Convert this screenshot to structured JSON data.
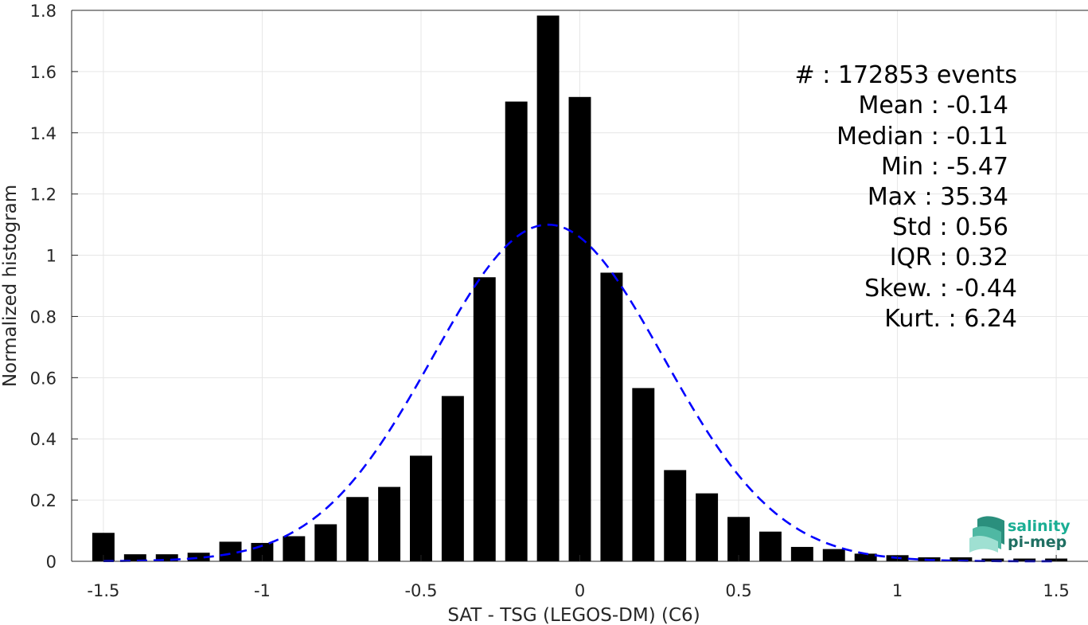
{
  "chart_data": {
    "type": "bar",
    "xlabel": "SAT - TSG (LEGOS-DM) (C6)",
    "ylabel": "Normalized histogram",
    "xlim": [
      -1.6,
      1.6
    ],
    "ylim": [
      0,
      1.8
    ],
    "x_ticks": [
      -1.5,
      -1,
      -0.5,
      0,
      0.5,
      1,
      1.5
    ],
    "x_tick_labels": [
      "-1.5",
      "-1",
      "-0.5",
      "0",
      "0.5",
      "1",
      "1.5"
    ],
    "y_ticks": [
      0,
      0.2,
      0.4,
      0.6,
      0.8,
      1,
      1.2,
      1.4,
      1.6,
      1.8
    ],
    "y_tick_labels": [
      "0",
      "0.2",
      "0.4",
      "0.6",
      "0.8",
      "1",
      "1.2",
      "1.4",
      "1.6",
      "1.8"
    ],
    "grid": true,
    "bar_color": "#000000",
    "bar_width": 0.07,
    "bins": [
      {
        "x": -1.5,
        "value": 0.093
      },
      {
        "x": -1.4,
        "value": 0.023
      },
      {
        "x": -1.3,
        "value": 0.023
      },
      {
        "x": -1.2,
        "value": 0.028
      },
      {
        "x": -1.1,
        "value": 0.064
      },
      {
        "x": -1.0,
        "value": 0.06
      },
      {
        "x": -0.9,
        "value": 0.082
      },
      {
        "x": -0.8,
        "value": 0.121
      },
      {
        "x": -0.7,
        "value": 0.21
      },
      {
        "x": -0.6,
        "value": 0.243
      },
      {
        "x": -0.5,
        "value": 0.345
      },
      {
        "x": -0.4,
        "value": 0.54
      },
      {
        "x": -0.3,
        "value": 0.928
      },
      {
        "x": -0.2,
        "value": 1.502
      },
      {
        "x": -0.1,
        "value": 1.783
      },
      {
        "x": 0.0,
        "value": 1.517
      },
      {
        "x": 0.1,
        "value": 0.943
      },
      {
        "x": 0.2,
        "value": 0.566
      },
      {
        "x": 0.3,
        "value": 0.298
      },
      {
        "x": 0.4,
        "value": 0.222
      },
      {
        "x": 0.5,
        "value": 0.145
      },
      {
        "x": 0.6,
        "value": 0.097
      },
      {
        "x": 0.7,
        "value": 0.047
      },
      {
        "x": 0.8,
        "value": 0.04
      },
      {
        "x": 0.9,
        "value": 0.025
      },
      {
        "x": 1.0,
        "value": 0.02
      },
      {
        "x": 1.1,
        "value": 0.013
      },
      {
        "x": 1.2,
        "value": 0.013
      },
      {
        "x": 1.3,
        "value": 0.009
      },
      {
        "x": 1.4,
        "value": 0.009
      },
      {
        "x": 1.5,
        "value": 0.009
      }
    ],
    "fit_curve": {
      "style": "dashed",
      "color": "#0000ff",
      "mean": -0.1,
      "std": 0.363,
      "peak": 1.1,
      "x_range": [
        -1.5,
        1.5
      ]
    },
    "stats": [
      "#  : 172853 events",
      "Mean : -0.14",
      "Median : -0.11",
      "Min : -5.47",
      "Max : 35.34",
      "Std : 0.56",
      "IQR : 0.32",
      "Skew. : -0.44",
      "Kurt. : 6.24"
    ]
  },
  "logo": {
    "line1": "salinity",
    "line2": "pi-mep",
    "colors": {
      "text1": "#1aae94",
      "text2": "#1f6f62",
      "wave_dark": "#2a8f7d",
      "wave_light": "#7fd6c4"
    }
  }
}
